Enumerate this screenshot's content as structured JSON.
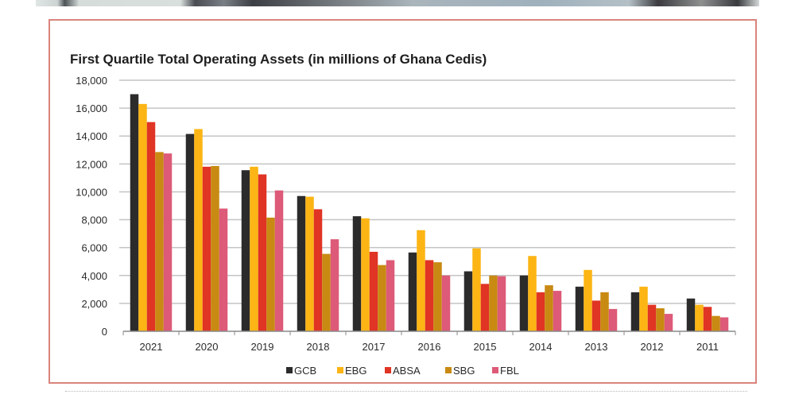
{
  "page": {
    "top_image": "photo-strip",
    "frame_color": "#d9847c"
  },
  "chart_data": {
    "type": "bar",
    "title": "First Quartile Total Operating Assets (in millions of Ghana Cedis)",
    "xlabel": "",
    "ylabel": "",
    "ylim": [
      0,
      18000
    ],
    "yticks": [
      0,
      2000,
      4000,
      6000,
      8000,
      10000,
      12000,
      14000,
      16000,
      18000
    ],
    "ytick_labels": [
      "0",
      "2,000",
      "4,000",
      "6,000",
      "8,000",
      "10,000",
      "12,000",
      "14,000",
      "16,000",
      "18,000"
    ],
    "grid": true,
    "legend_position": "bottom",
    "categories": [
      "2021",
      "2020",
      "2019",
      "2018",
      "2017",
      "2016",
      "2015",
      "2014",
      "2013",
      "2012",
      "2011"
    ],
    "series": [
      {
        "name": "GCB",
        "color": "#2b2b2b",
        "values": [
          17000,
          14150,
          11550,
          9700,
          8250,
          5650,
          4300,
          4000,
          3200,
          2800,
          2350
        ]
      },
      {
        "name": "EBG",
        "color": "#fcb514",
        "values": [
          16300,
          14500,
          11800,
          9650,
          8100,
          7250,
          5950,
          5400,
          4400,
          3200,
          1900
        ]
      },
      {
        "name": "ABSA",
        "color": "#e03424",
        "values": [
          15000,
          11800,
          11250,
          8750,
          5700,
          5100,
          3400,
          2800,
          2200,
          1900,
          1750
        ]
      },
      {
        "name": "SBG",
        "color": "#c88a12",
        "values": [
          12850,
          11850,
          8150,
          5550,
          4750,
          4950,
          4000,
          3300,
          2800,
          1650,
          1100
        ]
      },
      {
        "name": "FBL",
        "color": "#dd5a78",
        "values": [
          12750,
          8800,
          10100,
          6600,
          5100,
          4000,
          3950,
          2900,
          1600,
          1250,
          1000
        ]
      }
    ]
  }
}
